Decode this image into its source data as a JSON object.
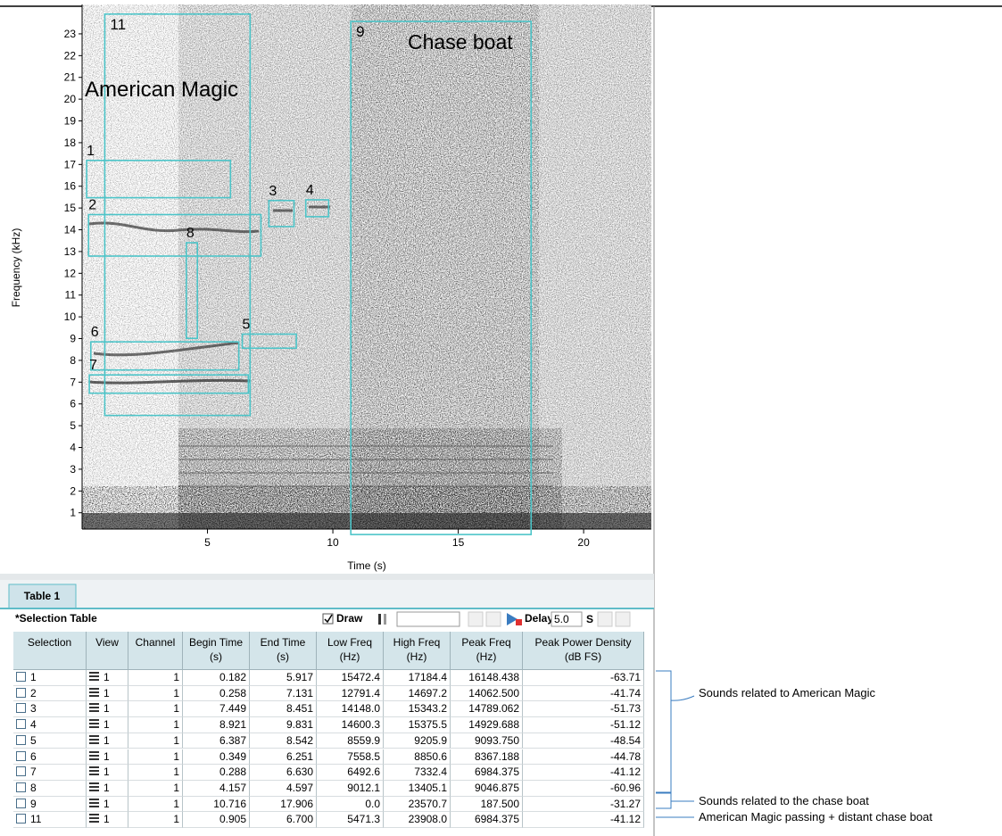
{
  "spectrogram": {
    "y_label": "Frequency (kHz)",
    "x_label": "Time (s)",
    "xlim": [
      0,
      22.7
    ],
    "ylim": [
      0.25,
      24.35
    ],
    "xticks": [
      5,
      10,
      15,
      20
    ],
    "yticks": [
      1,
      2,
      3,
      4,
      5,
      6,
      7,
      8,
      9,
      10,
      11,
      12,
      13,
      14,
      15,
      16,
      17,
      18,
      19,
      20,
      21,
      22,
      23
    ],
    "annotations": [
      "American Magic",
      "Chase boat"
    ]
  },
  "tab": "Table 1",
  "table_title": "*Selection Table",
  "draw_label": "Draw",
  "delay_label": "Delay:",
  "delay_value": "5.0",
  "delay_unit": "S",
  "table": {
    "columns": [
      [
        "Selection"
      ],
      [
        "View"
      ],
      [
        "Channel"
      ],
      [
        "Begin Time",
        "(s)"
      ],
      [
        "End Time",
        "(s)"
      ],
      [
        "Low Freq",
        "(Hz)"
      ],
      [
        "High Freq",
        "(Hz)"
      ],
      [
        "Peak Freq",
        "(Hz)"
      ],
      [
        "Peak Power Density",
        "(dB FS)"
      ]
    ],
    "rows": [
      [
        "1",
        "1",
        "1",
        "0.182",
        "5.917",
        "15472.4",
        "17184.4",
        "16148.438",
        "-63.71"
      ],
      [
        "2",
        "1",
        "1",
        "0.258",
        "7.131",
        "12791.4",
        "14697.2",
        "14062.500",
        "-41.74"
      ],
      [
        "3",
        "1",
        "1",
        "7.449",
        "8.451",
        "14148.0",
        "15343.2",
        "14789.062",
        "-51.73"
      ],
      [
        "4",
        "1",
        "1",
        "8.921",
        "9.831",
        "14600.3",
        "15375.5",
        "14929.688",
        "-51.12"
      ],
      [
        "5",
        "1",
        "1",
        "6.387",
        "8.542",
        "8559.9",
        "9205.9",
        "9093.750",
        "-48.54"
      ],
      [
        "6",
        "1",
        "1",
        "0.349",
        "6.251",
        "7558.5",
        "8850.6",
        "8367.188",
        "-44.78"
      ],
      [
        "7",
        "1",
        "1",
        "0.288",
        "6.630",
        "6492.6",
        "7332.4",
        "6984.375",
        "-41.12"
      ],
      [
        "8",
        "1",
        "1",
        "4.157",
        "4.597",
        "9012.1",
        "13405.1",
        "9046.875",
        "-60.96"
      ],
      [
        "9",
        "1",
        "1",
        "10.716",
        "17.906",
        "0.0",
        "23570.7",
        "187.500",
        "-31.27"
      ],
      [
        "11",
        "1",
        "1",
        "0.905",
        "6.700",
        "5471.3",
        "23908.0",
        "6984.375",
        "-41.12"
      ]
    ]
  },
  "notes": [
    "Sounds related to American Magic",
    "Sounds related to the chase boat",
    "American Magic passing + distant chase boat"
  ]
}
